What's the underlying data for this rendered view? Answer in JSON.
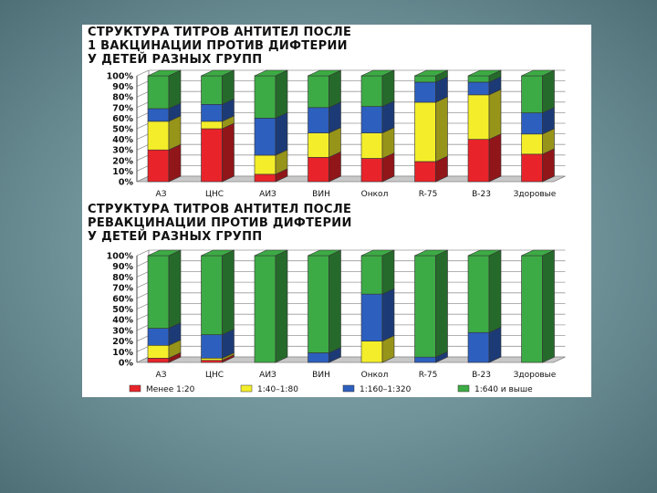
{
  "colors": {
    "low": "#e8242a",
    "mid": "#f4ee2a",
    "high": "#2d5fbf",
    "top": "#3dab45"
  },
  "legend": [
    {
      "label": "Менее 1:20",
      "color_key": "low"
    },
    {
      "label": "1:40–1:80",
      "color_key": "mid"
    },
    {
      "label": "1:160–1:320",
      "color_key": "high"
    },
    {
      "label": "1:640 и выше",
      "color_key": "top"
    }
  ],
  "chart_data": [
    {
      "type": "bar",
      "stacked": true,
      "title_lines": [
        "СТРУКТУРА ТИТРОВ АНТИТЕЛ ПОСЛЕ",
        "1 ВАКЦИНАЦИИ ПРОТИВ ДИФТЕРИИ",
        "У ДЕТЕЙ РАЗНЫХ ГРУПП"
      ],
      "categories": [
        "АЗ",
        "ЦНС",
        "АИЗ",
        "ВИН",
        "Онкол",
        "R-75",
        "В-23",
        "Здоровые"
      ],
      "yticks": [
        "100%",
        "90%",
        "80%",
        "70%",
        "60%",
        "50%",
        "40%",
        "30%",
        "20%",
        "10%",
        "0%"
      ],
      "ylim": [
        0,
        100
      ],
      "series": [
        {
          "name": "Менее 1:20",
          "values": [
            30,
            50,
            7,
            23,
            22,
            19,
            40,
            26
          ]
        },
        {
          "name": "1:40–1:80",
          "values": [
            27,
            7,
            18,
            23,
            24,
            56,
            42,
            19
          ]
        },
        {
          "name": "1:160–1:320",
          "values": [
            12,
            16,
            35,
            24,
            25,
            19,
            12,
            20
          ]
        },
        {
          "name": "1:640 и выше",
          "values": [
            31,
            27,
            40,
            30,
            29,
            6,
            6,
            35
          ]
        }
      ]
    },
    {
      "type": "bar",
      "stacked": true,
      "title_lines": [
        "СТРУКТУРА ТИТРОВ АНТИТЕЛ ПОСЛЕ",
        "РЕВАКЦИНАЦИИ ПРОТИВ ДИФТЕРИИ",
        "У ДЕТЕЙ РАЗНЫХ ГРУПП"
      ],
      "categories": [
        "АЗ",
        "ЦНС",
        "АИЗ",
        "ВИН",
        "Онкол",
        "R-75",
        "В-23",
        "Здоровые"
      ],
      "yticks": [
        "100%",
        "90%",
        "80%",
        "70%",
        "60%",
        "50%",
        "40%",
        "30%",
        "20%",
        "10%",
        "0%"
      ],
      "ylim": [
        0,
        100
      ],
      "series": [
        {
          "name": "Менее 1:20",
          "values": [
            4,
            2,
            0,
            0,
            0,
            0,
            0,
            0
          ]
        },
        {
          "name": "1:40–1:80",
          "values": [
            12,
            2,
            0,
            0,
            20,
            0,
            0,
            0
          ]
        },
        {
          "name": "1:160–1:320",
          "values": [
            16,
            22,
            0,
            9,
            44,
            5,
            28,
            0
          ]
        },
        {
          "name": "1:640 и выше",
          "values": [
            68,
            74,
            100,
            91,
            36,
            95,
            72,
            100
          ]
        }
      ]
    }
  ]
}
